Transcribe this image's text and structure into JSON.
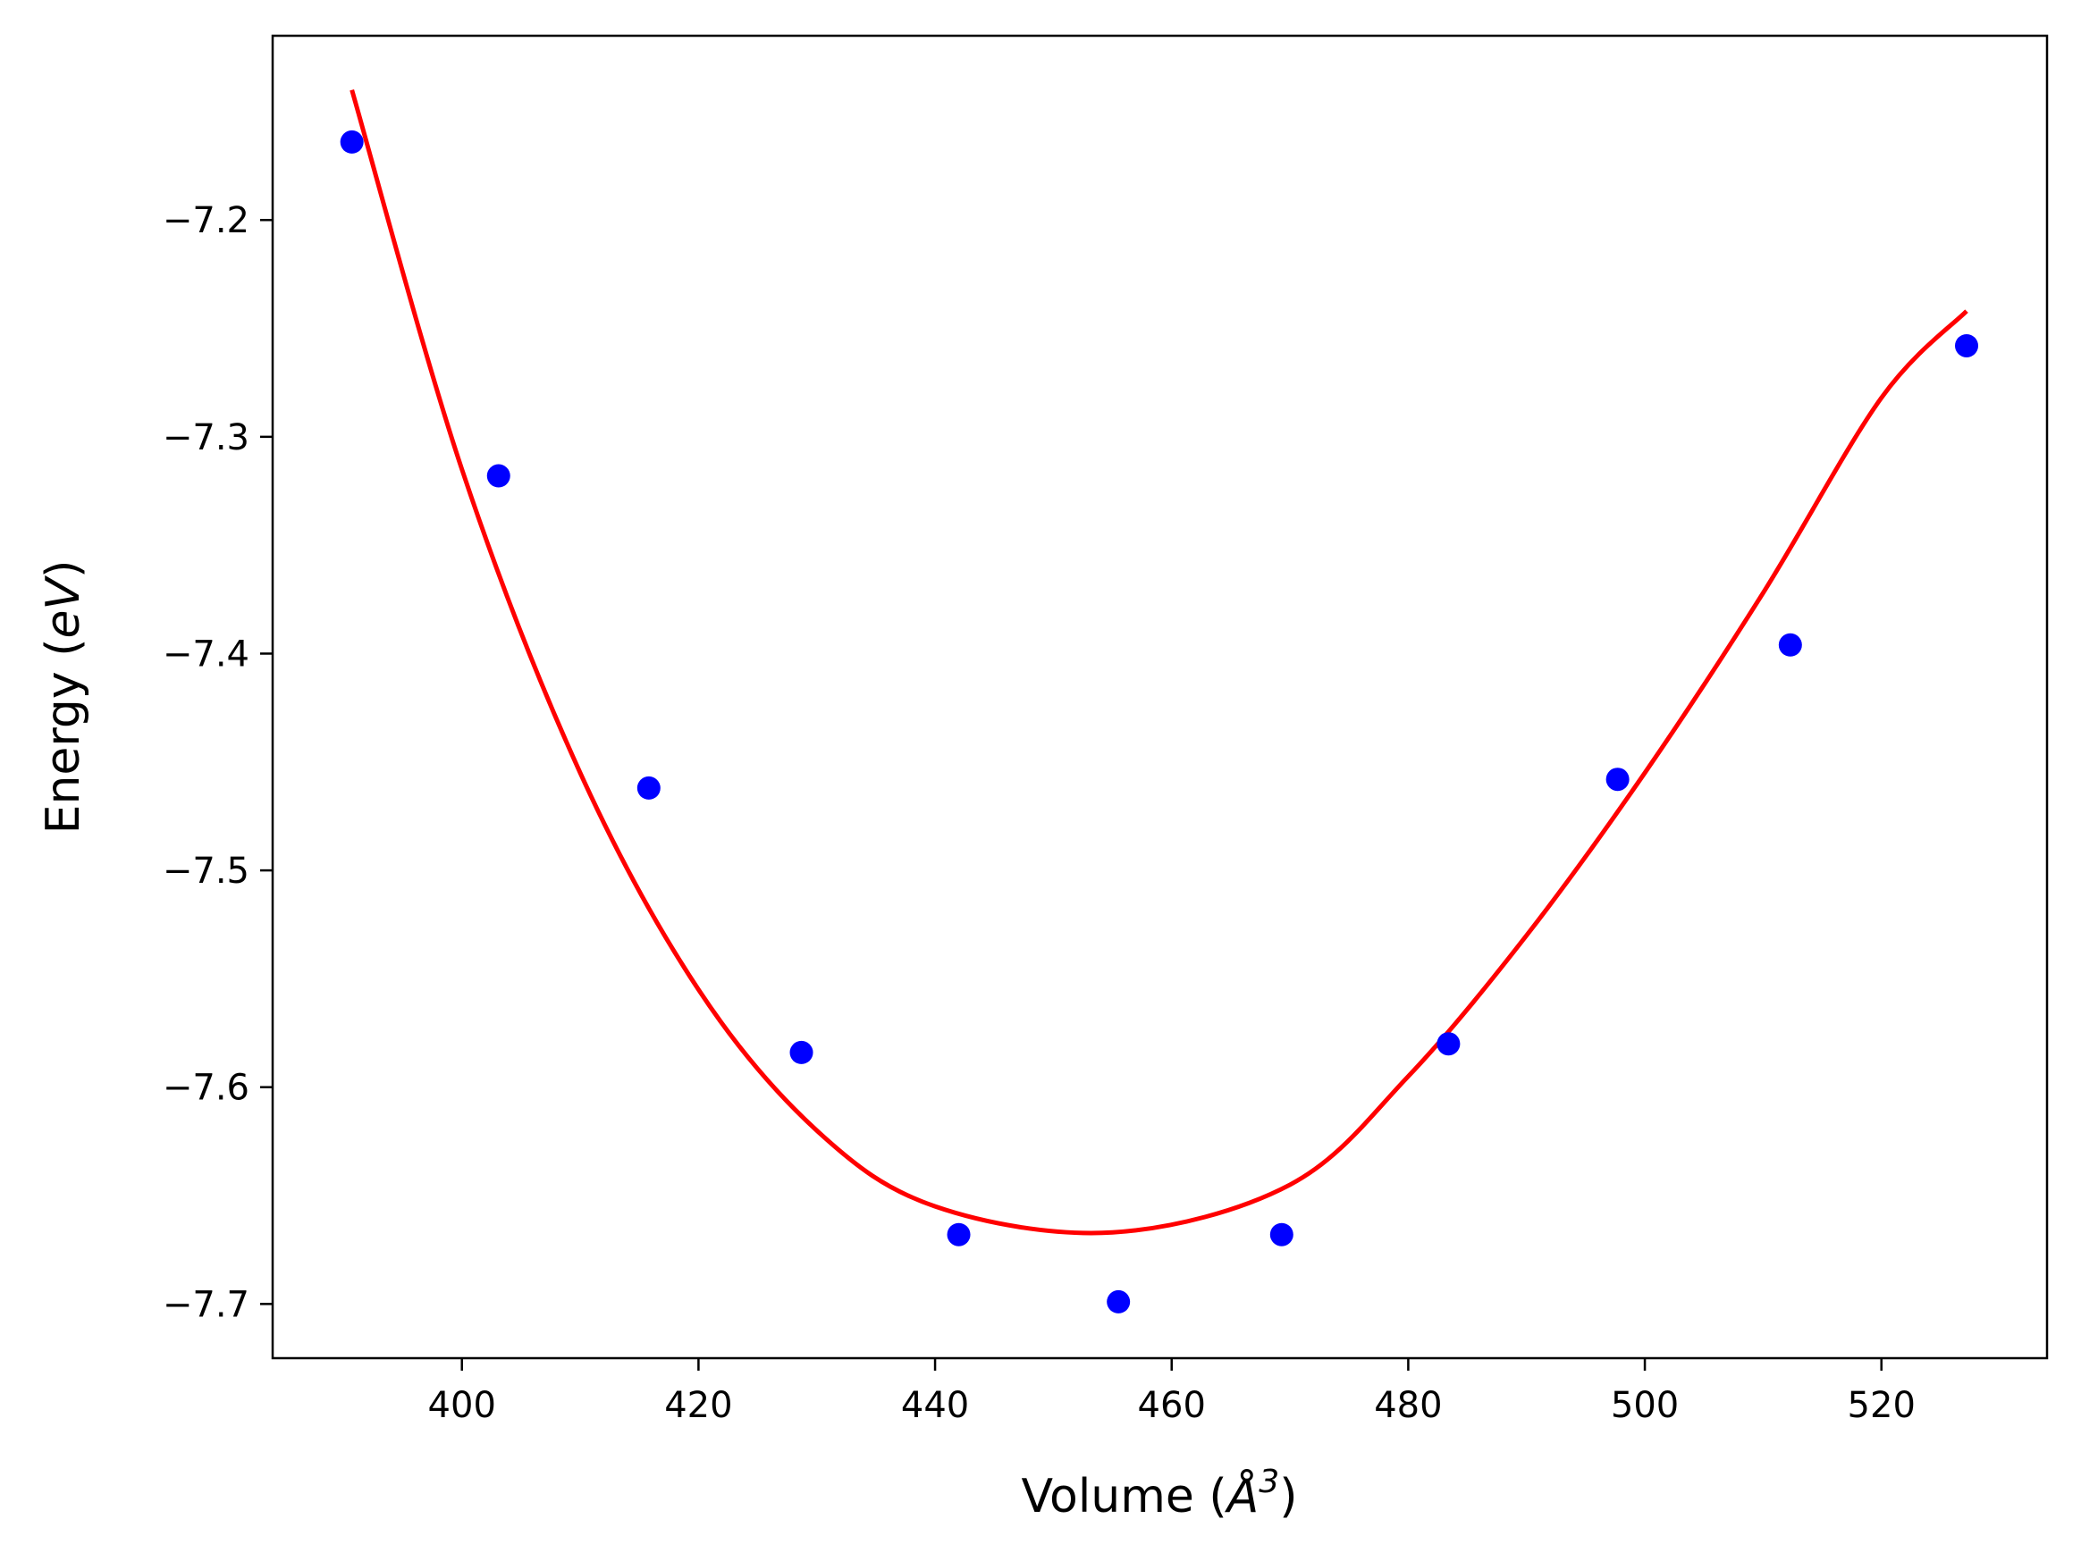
{
  "chart_data": {
    "type": "scatter",
    "xlabel": "Volume",
    "xlabel_unit_symbol": "Å",
    "xlabel_unit_exponent": "3",
    "ylabel": "Energy",
    "ylabel_unit": "eV",
    "xlim": [
      384,
      534
    ],
    "ylim": [
      -7.725,
      -7.115
    ],
    "x_ticks": [
      400,
      420,
      440,
      460,
      480,
      500,
      520
    ],
    "y_ticks": [
      -7.2,
      -7.3,
      -7.4,
      -7.5,
      -7.6,
      -7.7
    ],
    "grid": false,
    "colors": {
      "points": "#0000ff",
      "fit": "#ff0000"
    },
    "series": [
      {
        "type": "scatter",
        "x": [
          390.7,
          403.1,
          415.8,
          428.7,
          442.0,
          455.5,
          469.3,
          483.4,
          497.7,
          512.3,
          527.2
        ],
        "y": [
          -7.164,
          -7.318,
          -7.462,
          -7.584,
          -7.668,
          -7.699,
          -7.668,
          -7.58,
          -7.458,
          -7.396,
          -7.258
        ]
      },
      {
        "type": "line",
        "fit_points": [
          [
            390.7,
            -7.14
          ],
          [
            400,
            -7.315
          ],
          [
            410,
            -7.455
          ],
          [
            420,
            -7.555
          ],
          [
            430,
            -7.62
          ],
          [
            440,
            -7.655
          ],
          [
            455,
            -7.667
          ],
          [
            470,
            -7.645
          ],
          [
            480,
            -7.595
          ],
          [
            490,
            -7.53
          ],
          [
            500,
            -7.455
          ],
          [
            510,
            -7.372
          ],
          [
            520,
            -7.282
          ],
          [
            527.2,
            -7.242
          ]
        ]
      }
    ]
  }
}
